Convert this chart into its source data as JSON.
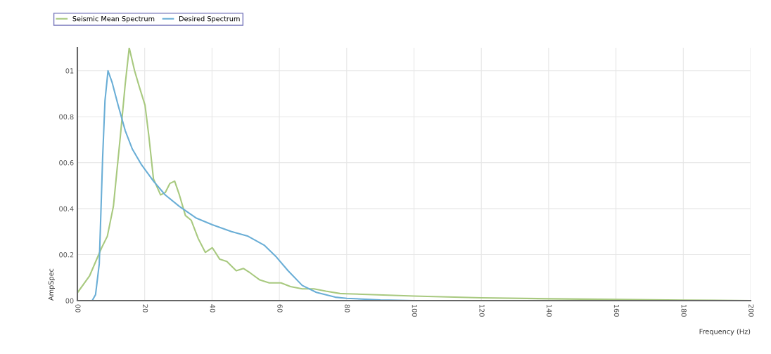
{
  "chart_data": {
    "type": "line",
    "xlabel": "Frequency (Hz)",
    "ylabel": "AmpSpec",
    "legend": "top",
    "grid": true,
    "marker": "none",
    "line_style": "solid",
    "xlim": [
      0,
      200
    ],
    "ylim": [
      0,
      1.1
    ],
    "xticks": [
      {
        "value": 0,
        "label": "00"
      },
      20,
      40,
      60,
      80,
      100,
      120,
      140,
      160,
      180,
      200
    ],
    "yticks": [
      {
        "value": 0,
        "label": "00"
      },
      {
        "value": 0.2,
        "label": "00.2"
      },
      {
        "value": 0.4,
        "label": "00.4"
      },
      {
        "value": 0.6,
        "label": "00.6"
      },
      {
        "value": 0.8,
        "label": "00.8"
      },
      {
        "value": 1,
        "label": "01"
      }
    ],
    "series": [
      {
        "name": "Seismic Mean Spectrum",
        "color": "#a8c97f",
        "x": [
          0.1,
          3.6,
          7.2,
          8.9,
          10.7,
          12.8,
          14.2,
          15.4,
          17.0,
          18.4,
          20.1,
          21.2,
          22.6,
          24.7,
          26.1,
          27.5,
          28.9,
          30.3,
          32.1,
          33.8,
          35.9,
          38.0,
          40.1,
          42.3,
          44.4,
          47.2,
          49.3,
          51.4,
          54.2,
          57.0,
          60.5,
          63.3,
          66.8,
          70.3,
          73.8,
          78.0,
          80,
          100,
          120,
          140,
          160,
          180,
          200
        ],
        "values": [
          0.036,
          0.107,
          0.23,
          0.28,
          0.41,
          0.72,
          0.94,
          1.1,
          1.0,
          0.93,
          0.85,
          0.72,
          0.53,
          0.46,
          0.47,
          0.51,
          0.52,
          0.46,
          0.37,
          0.35,
          0.27,
          0.21,
          0.23,
          0.18,
          0.17,
          0.13,
          0.14,
          0.12,
          0.09,
          0.077,
          0.077,
          0.061,
          0.051,
          0.051,
          0.041,
          0.031,
          0.03,
          0.02,
          0.012,
          0.008,
          0.005,
          0.002,
          0
        ]
      },
      {
        "name": "Desired Spectrum",
        "color": "#6aaed6",
        "x": [
          0,
          4.4,
          5.4,
          6.5,
          7.5,
          8.2,
          9.1,
          10.3,
          12.1,
          14.2,
          16.3,
          19.1,
          22.6,
          26.1,
          30.3,
          35.2,
          40.1,
          45.8,
          50.7,
          55.6,
          59.1,
          62.6,
          66.8,
          71.0,
          76.6,
          80,
          90,
          100,
          200
        ],
        "values": [
          0,
          0,
          0.026,
          0.16,
          0.62,
          0.87,
          1.0,
          0.95,
          0.85,
          0.74,
          0.66,
          0.59,
          0.52,
          0.46,
          0.41,
          0.36,
          0.33,
          0.3,
          0.28,
          0.24,
          0.19,
          0.13,
          0.066,
          0.036,
          0.015,
          0.01,
          0.003,
          0,
          0
        ]
      }
    ]
  }
}
